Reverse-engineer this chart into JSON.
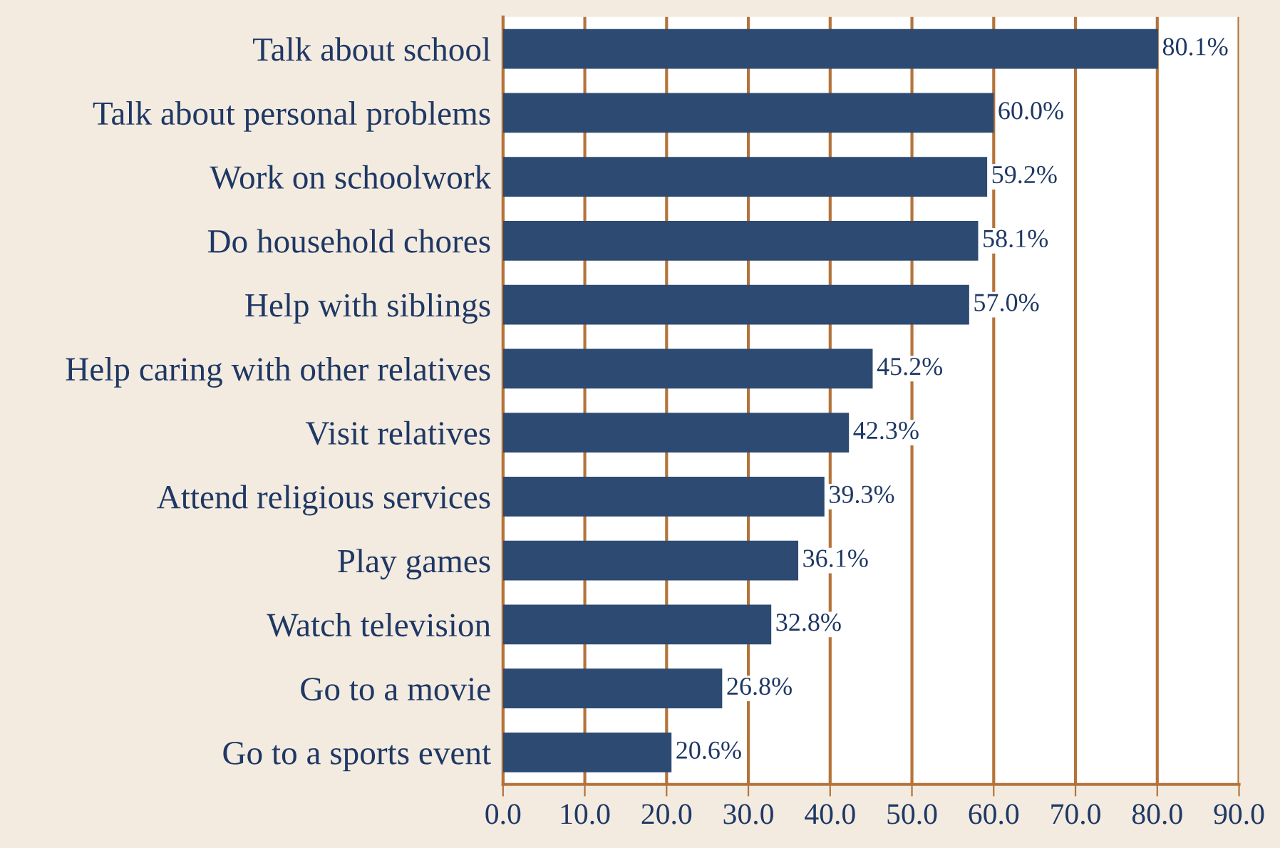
{
  "chart_data": {
    "type": "bar",
    "orientation": "horizontal",
    "categories": [
      "Talk about school",
      "Talk about personal problems",
      "Work on schoolwork",
      "Do household chores",
      "Help with siblings",
      "Help caring with other relatives",
      "Visit relatives",
      "Attend religious services",
      "Play games",
      "Watch television",
      "Go to a movie",
      "Go to a sports event"
    ],
    "values": [
      80.1,
      60.0,
      59.2,
      58.1,
      57.0,
      45.2,
      42.3,
      39.3,
      36.1,
      32.8,
      26.8,
      20.6
    ],
    "value_labels": [
      "80.1%",
      "60.0%",
      "59.2%",
      "58.1%",
      "57.0%",
      "45.2%",
      "42.3%",
      "39.3%",
      "36.1%",
      "32.8%",
      "26.8%",
      "20.6%"
    ],
    "color": "#2c4a72",
    "xlim": [
      0,
      90
    ],
    "xticks": [
      {
        "value": 0,
        "label": "0.0"
      },
      {
        "value": 10,
        "label": "10.0"
      },
      {
        "value": 20,
        "label": "20.0"
      },
      {
        "value": 30,
        "label": "30.0"
      },
      {
        "value": 40,
        "label": "40.0"
      },
      {
        "value": 50,
        "label": "50.0"
      },
      {
        "value": 60,
        "label": "60.0"
      },
      {
        "value": 70,
        "label": "70.0"
      },
      {
        "value": 80,
        "label": "80.0"
      },
      {
        "value": 90,
        "label": "90.0"
      }
    ],
    "grid": "x"
  }
}
